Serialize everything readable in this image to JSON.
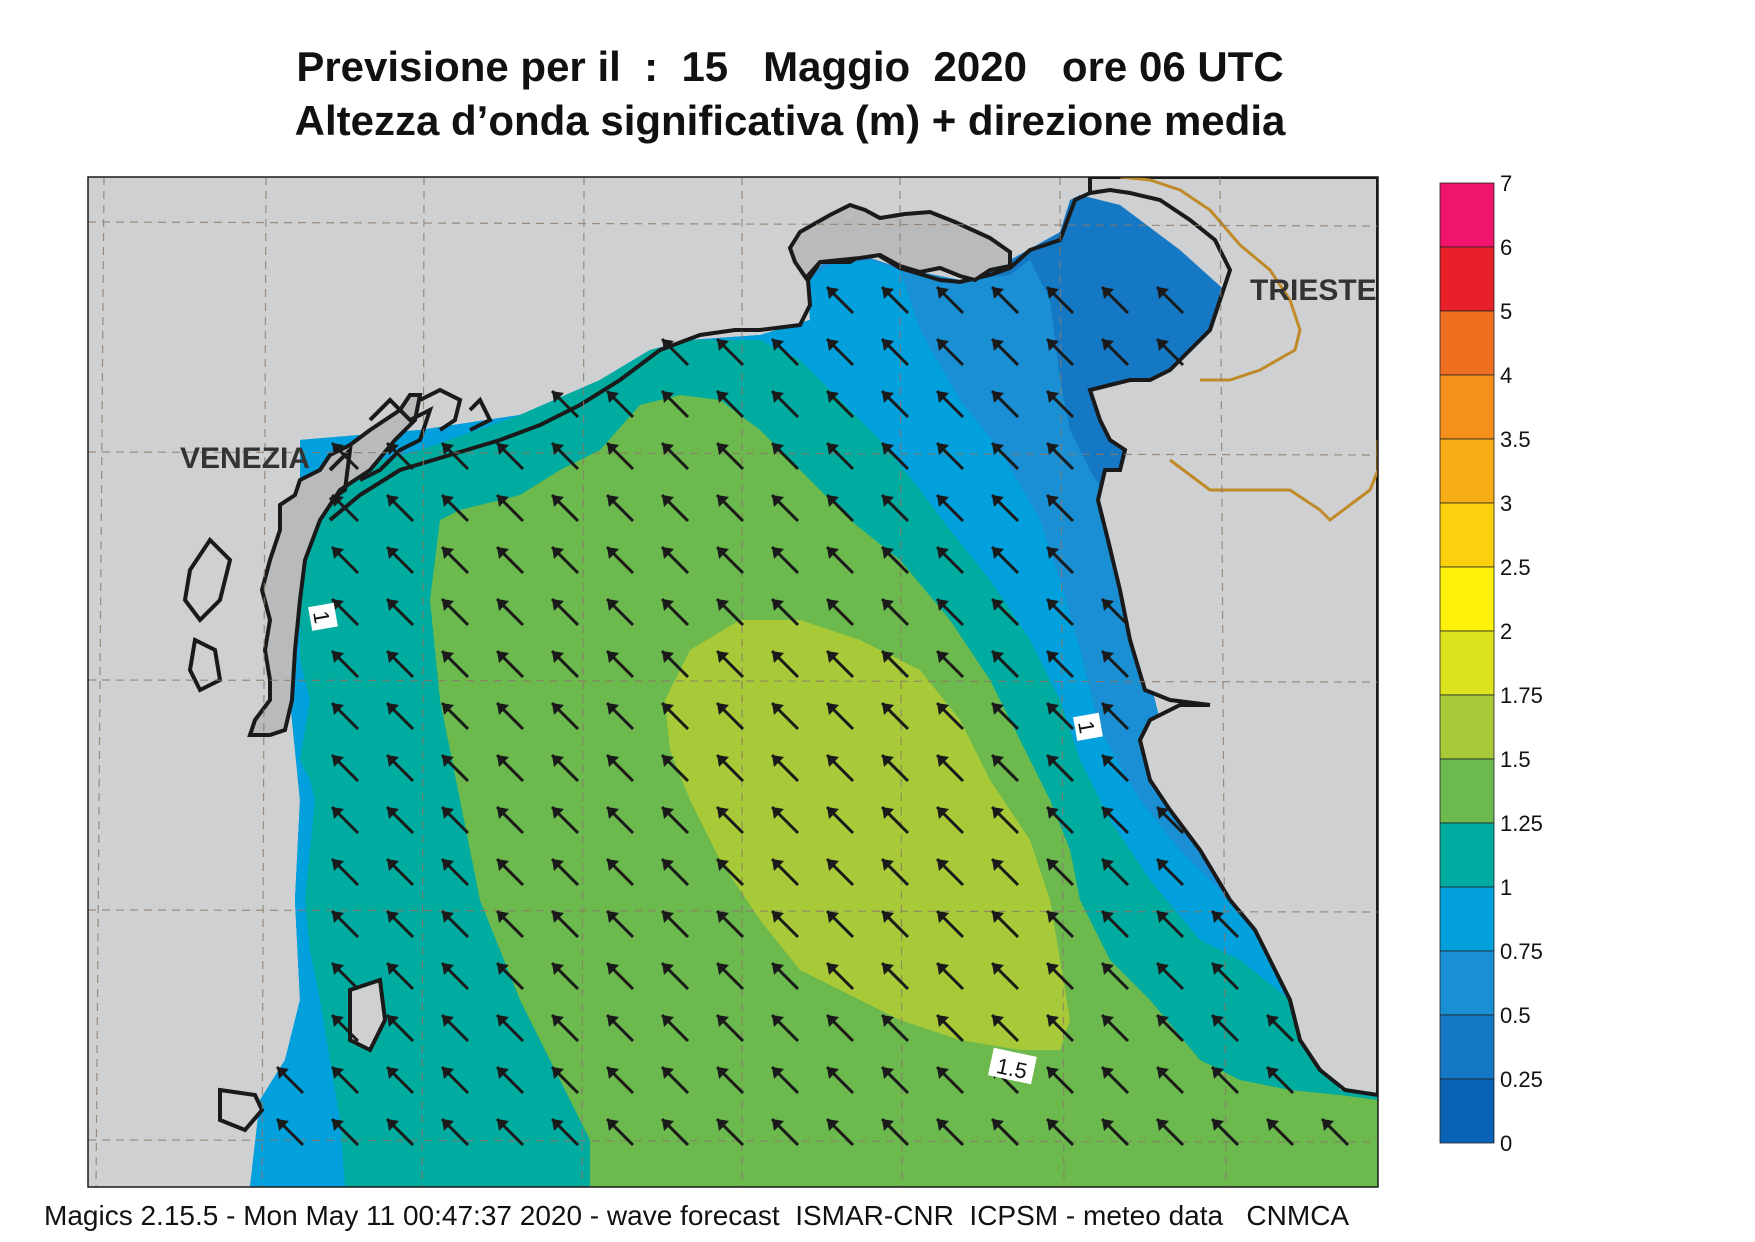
{
  "title": {
    "line1": "Previsione per il  :  15   Maggio  2020   ore 06 UTC",
    "line2": "Altezza d’onda significativa (m) + direzione media"
  },
  "cities": {
    "venezia": "VENEZIA",
    "trieste": "TRIESTE"
  },
  "contour_labels": {
    "west": "1",
    "east": "1",
    "south": "1.5"
  },
  "legend": {
    "levels": [
      "7",
      "6",
      "5",
      "4",
      "3.5",
      "3",
      "2.5",
      "2",
      "1.75",
      "1.5",
      "1.25",
      "1",
      "0.75",
      "0.5",
      "0.25",
      "0"
    ],
    "colors": [
      "#f0146c",
      "#e8202a",
      "#f06e20",
      "#f5901c",
      "#f8ac16",
      "#fcd00c",
      "#fff20a",
      "#dce31e",
      "#a8ca38",
      "#6cb94e",
      "#00aca0",
      "#02a0dc",
      "#1a8fd4",
      "#1478c4",
      "#0a62b4"
    ]
  },
  "colors": {
    "land": "#cfd0d1",
    "land_dark": "#b9babb",
    "h_0_5": "#1478c4",
    "h_0_75": "#1a8fd4",
    "h_1": "#02a0dc",
    "h_1_25": "#00aca0",
    "h_1_5": "#6cb94e",
    "h_1_75": "#a8ca38",
    "border": "#c08a28",
    "arrow": "#1a1a1a"
  },
  "wave_direction": "northwest",
  "footer": "Magics 2.15.5 - Mon May 11 00:47:37 2020 - wave forecast  ISMAR-CNR  ICPSM - meteo data   CNMCA"
}
